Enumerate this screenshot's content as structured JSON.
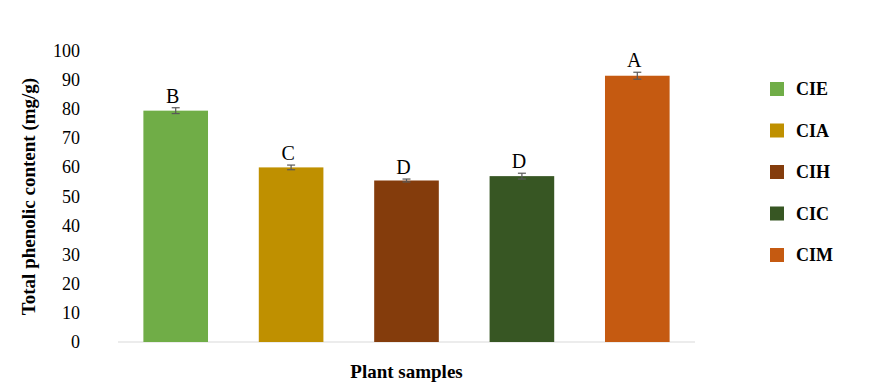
{
  "chart_data": {
    "type": "bar",
    "x_label": "Plant samples",
    "y_label": "Total phenolic content (mg/g)",
    "categories": [
      "CIE",
      "CIA",
      "CIH",
      "CIC",
      "CIM"
    ],
    "values": [
      79.5,
      60,
      55.5,
      57,
      91.5
    ],
    "errors": [
      1,
      0.8,
      0.5,
      1,
      1.2
    ],
    "annotations": [
      "B",
      "C",
      "D",
      "D",
      "A"
    ],
    "colors": [
      "#70ad47",
      "#bf9000",
      "#843c0c",
      "#375623",
      "#c55a11"
    ],
    "ylim": [
      0,
      100
    ],
    "yticks": [
      0,
      10,
      20,
      30,
      40,
      50,
      60,
      70,
      80,
      90,
      100
    ],
    "grid": false,
    "legend": "right",
    "tick_labels": "y"
  }
}
